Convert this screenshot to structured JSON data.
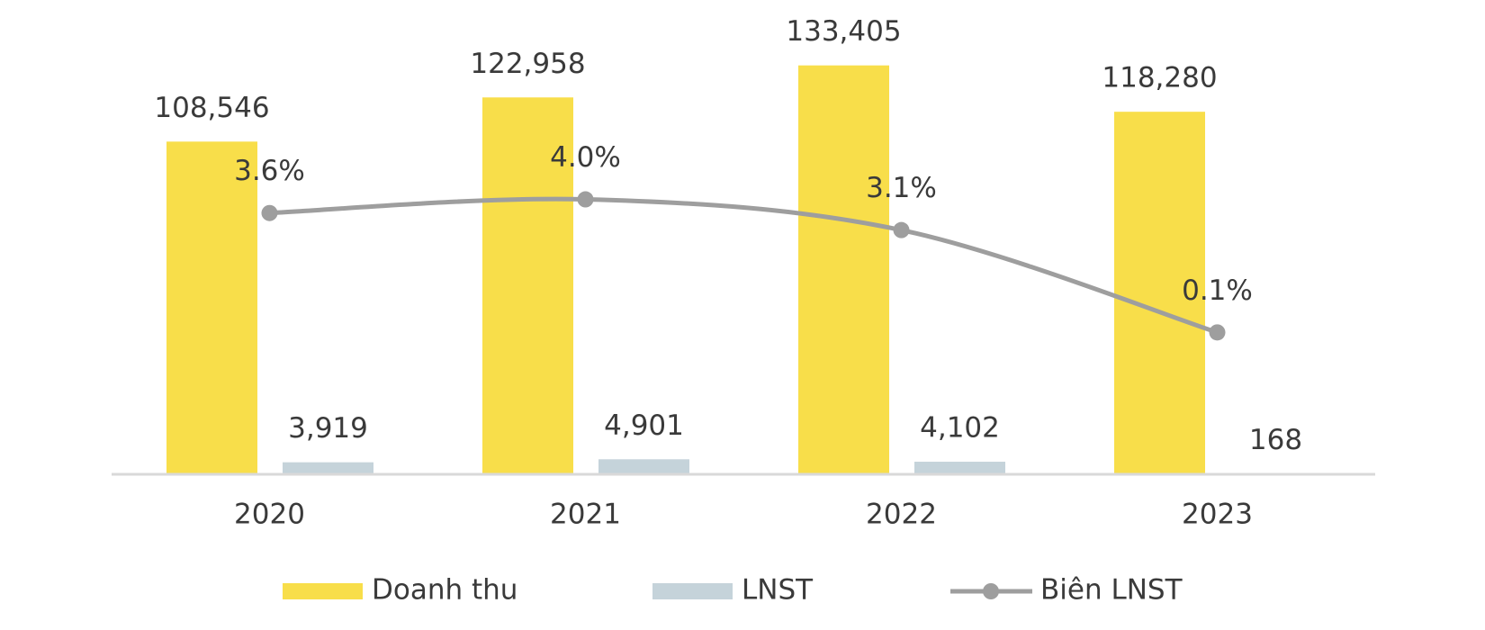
{
  "chart_data": {
    "type": "bar",
    "categories": [
      "2020",
      "2021",
      "2022",
      "2023"
    ],
    "series": [
      {
        "name": "Doanh thu",
        "color": "#F8DE4A",
        "values": [
          108546,
          122958,
          133405,
          118280
        ],
        "value_labels": [
          "108,546",
          "122,958",
          "133,405",
          "118,280"
        ]
      },
      {
        "name": "LNST",
        "color": "#C5D3DA",
        "values": [
          3919,
          4901,
          4102,
          168
        ],
        "value_labels": [
          "3,919",
          "4,901",
          "4,102",
          "168"
        ]
      },
      {
        "name": "Biên LNST",
        "type": "line",
        "axis": "y2",
        "color": "#9E9E9E",
        "values": [
          3.6,
          4.0,
          3.1,
          0.1
        ],
        "value_labels": [
          "3.6%",
          "4.0%",
          "3.1%",
          "0.1%"
        ]
      }
    ],
    "ylim": [
      0,
      143000
    ],
    "y2lim": [
      -4.06,
      8.79
    ],
    "legend": "bottom"
  }
}
